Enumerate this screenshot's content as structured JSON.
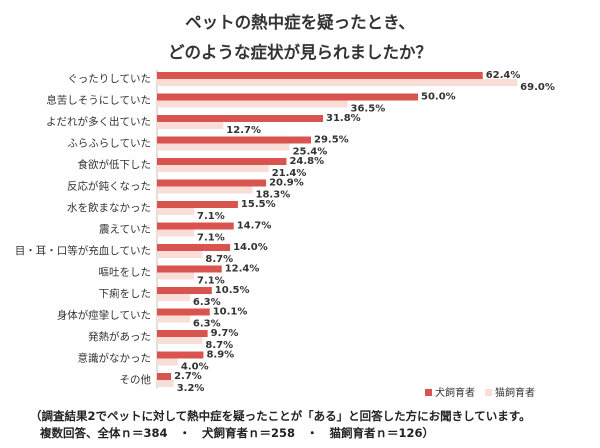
{
  "title": {
    "line1": "ペットの熱中症を疑ったとき、",
    "line2": "どのような症状が見られましたか？"
  },
  "colors": {
    "dog": "#d9534f",
    "cat": "#f9ddd6"
  },
  "footnote": {
    "line1": "（調査結果2でペットに対して熱中症を疑ったことが「ある」と回答した方にお聞きしています。",
    "line2": "複数回答、全体ｎ＝384　・　犬飼育者ｎ＝258　・　猫飼育者ｎ＝126）"
  },
  "chart_data": {
    "type": "bar",
    "orientation": "horizontal",
    "categories": [
      "ぐったりしていた",
      "息苦しそうにしていた",
      "よだれが多く出ていた",
      "ふらふらしていた",
      "食欲が低下した",
      "反応が鈍くなった",
      "水を飲まなかった",
      "震えていた",
      "目・耳・口等が充血していた",
      "嘔吐をした",
      "下痢をした",
      "身体が痙攣していた",
      "発熱があった",
      "意識がなかった",
      "その他"
    ],
    "series": [
      {
        "name": "犬飼育者",
        "values": [
          62.4,
          50.0,
          31.8,
          29.5,
          24.8,
          20.9,
          15.5,
          14.7,
          14.0,
          12.4,
          10.5,
          10.1,
          9.7,
          8.9,
          2.7
        ]
      },
      {
        "name": "猫飼育者",
        "values": [
          69.0,
          36.5,
          12.7,
          25.4,
          21.4,
          18.3,
          7.1,
          7.1,
          8.7,
          7.1,
          6.3,
          6.3,
          8.7,
          4.0,
          3.2
        ]
      }
    ],
    "value_labels": [
      [
        "62.4%",
        "50.0%",
        "31.8%",
        "29.5%",
        "24.8%",
        "20.9%",
        "15.5%",
        "14.7%",
        "14.0%",
        "12.4%",
        "10.5%",
        "10.1%",
        "9.7%",
        "8.9%",
        "2.7%"
      ],
      [
        "69.0%",
        "36.5%",
        "12.7%",
        "25.4%",
        "21.4%",
        "18.3%",
        "7.1%",
        "7.1%",
        "8.7%",
        "7.1%",
        "6.3%",
        "6.3%",
        "8.7%",
        "4.0%",
        "3.2%"
      ]
    ],
    "xlim": [
      0,
      100
    ],
    "grid": false,
    "legend_position": "bottom-right"
  }
}
